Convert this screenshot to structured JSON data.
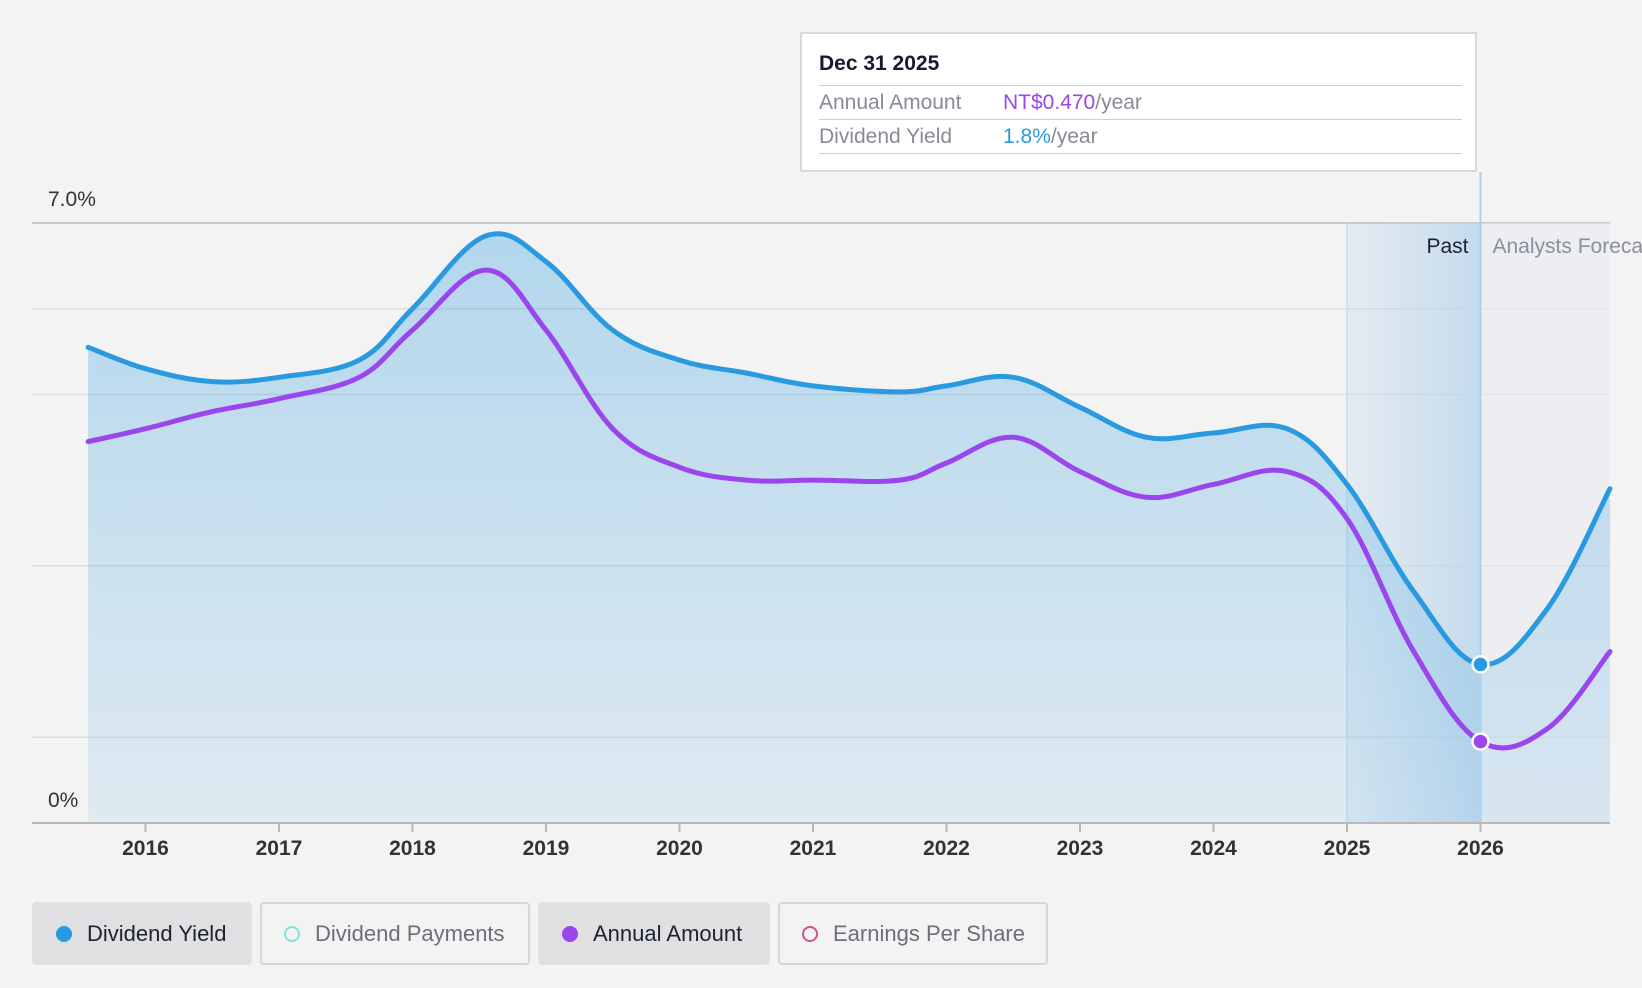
{
  "tooltip": {
    "date": "Dec 31 2025",
    "rows": [
      {
        "label": "Annual Amount",
        "value": "NT$0.470",
        "unit": "/year",
        "color": "#9b45ec"
      },
      {
        "label": "Dividend Yield",
        "value": "1.8%",
        "unit": "/year",
        "color": "#2a9ae0"
      }
    ]
  },
  "legend": [
    {
      "label": "Dividend Yield",
      "color": "#2a9ae0",
      "active": true,
      "filled": true
    },
    {
      "label": "Dividend Payments",
      "color": "#7fe3d8",
      "active": false,
      "filled": false
    },
    {
      "label": "Annual Amount",
      "color": "#9b45ec",
      "active": true,
      "filled": true
    },
    {
      "label": "Earnings Per Share",
      "color": "#d0558a",
      "active": false,
      "filled": false
    }
  ],
  "chart_data": {
    "type": "line",
    "y_top_label": "7.0%",
    "y_bottom_label": "0%",
    "ylim": [
      0,
      7.0
    ],
    "xlim": [
      2015.15,
      2026.97
    ],
    "x_ticks": [
      "2016",
      "2017",
      "2018",
      "2019",
      "2020",
      "2021",
      "2022",
      "2023",
      "2024",
      "2025",
      "2026"
    ],
    "x_tick_values": [
      2016,
      2017,
      2018,
      2019,
      2020,
      2021,
      2022,
      2023,
      2024,
      2025,
      2026
    ],
    "grid_values": [
      1.0,
      3.0,
      5.0,
      6.0,
      7.0
    ],
    "region_labels": {
      "past": "Past",
      "forecast": "Analysts Forecasts"
    },
    "past_end": 2025.0,
    "marker_x": 2026.0,
    "series": [
      {
        "name": "Dividend Yield",
        "color": "#2a9ae0",
        "x": [
          2015.57,
          2016.0,
          2016.5,
          2017.0,
          2017.6,
          2018.0,
          2018.55,
          2019.0,
          2019.5,
          2020.0,
          2020.5,
          2021.0,
          2021.65,
          2022.0,
          2022.5,
          2023.0,
          2023.5,
          2024.0,
          2024.55,
          2025.0,
          2025.5,
          2026.0,
          2026.5,
          2026.97
        ],
        "values": [
          5.55,
          5.3,
          5.15,
          5.2,
          5.4,
          6.0,
          6.85,
          6.55,
          5.75,
          5.4,
          5.25,
          5.1,
          5.03,
          5.1,
          5.2,
          4.85,
          4.5,
          4.55,
          4.6,
          3.95,
          2.7,
          1.85,
          2.5,
          3.9
        ]
      },
      {
        "name": "Annual Amount",
        "color": "#9b45ec",
        "x": [
          2015.57,
          2016.0,
          2016.5,
          2017.0,
          2017.6,
          2018.0,
          2018.55,
          2019.0,
          2019.5,
          2020.0,
          2020.5,
          2021.0,
          2021.65,
          2022.0,
          2022.5,
          2023.0,
          2023.5,
          2024.0,
          2024.55,
          2025.0,
          2025.5,
          2026.0,
          2026.5,
          2026.97
        ],
        "values": [
          4.45,
          4.6,
          4.8,
          4.95,
          5.2,
          5.75,
          6.45,
          5.75,
          4.6,
          4.15,
          4.0,
          4.0,
          4.0,
          4.2,
          4.5,
          4.1,
          3.8,
          3.95,
          4.1,
          3.55,
          2.0,
          0.95,
          1.1,
          2.0
        ]
      }
    ]
  }
}
